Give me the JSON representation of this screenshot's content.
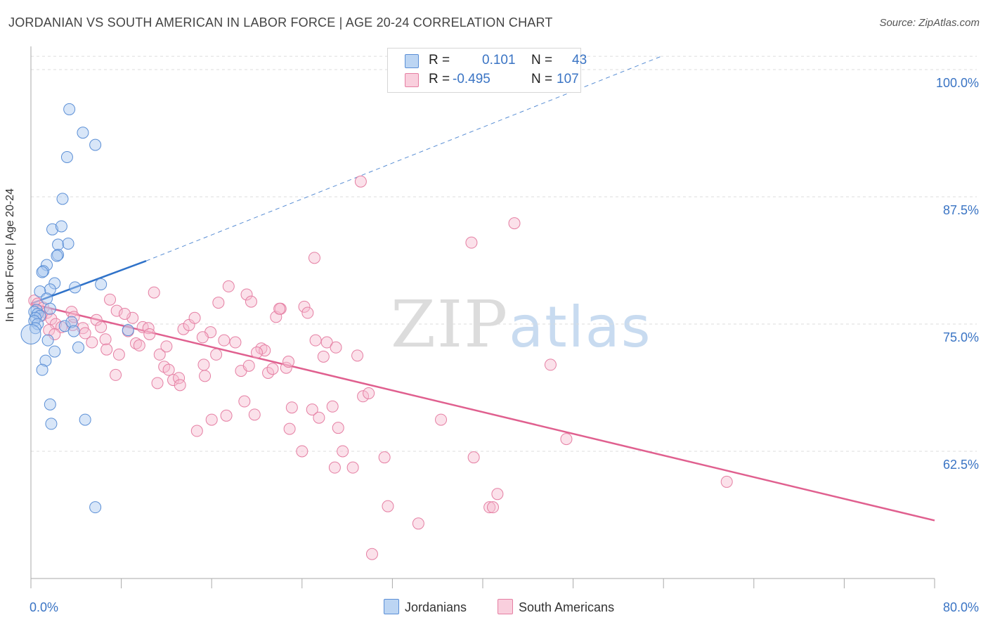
{
  "title": "JORDANIAN VS SOUTH AMERICAN IN LABOR FORCE | AGE 20-24 CORRELATION CHART",
  "source": "Source: ZipAtlas.com",
  "watermark": {
    "zip": "ZIP",
    "atlas": "atlas"
  },
  "legend": {
    "rows": [
      {
        "r_label": "R =",
        "r_value": "0.101",
        "n_label": "N =",
        "n_value": "43"
      },
      {
        "r_label": "R =",
        "r_value": "-0.495",
        "n_label": "N =",
        "n_value": "107"
      }
    ]
  },
  "bottom_legend": {
    "jordanians": "Jordanians",
    "south_americans": "South Americans"
  },
  "colors": {
    "blue_fill": "#a9c8ef",
    "blue_stroke": "#5b8fd6",
    "blue_line": "#2f72c9",
    "pink_fill": "#f6bdd0",
    "pink_stroke": "#e57fa3",
    "pink_line": "#e0608f",
    "tick_text": "#3a74c4",
    "grid": "#dddddd"
  },
  "chart_data": {
    "type": "scatter",
    "title": "JORDANIAN VS SOUTH AMERICAN IN LABOR FORCE | AGE 20-24 CORRELATION CHART",
    "xlabel": "",
    "ylabel": "In Labor Force | Age 20-24",
    "xlim": [
      0,
      80
    ],
    "ylim": [
      50,
      102
    ],
    "x_tick_labels": [
      "0.0%",
      "80.0%"
    ],
    "y_ticks": [
      62.5,
      75.0,
      87.5,
      100.0
    ],
    "y_tick_labels": [
      "62.5%",
      "75.0%",
      "87.5%",
      "100.0%"
    ],
    "series": [
      {
        "name": "Jordanians",
        "r": 0.101,
        "n": 43,
        "trend": {
          "x0": 0,
          "y0": 77.0,
          "x1": 10.2,
          "y1": 81.2,
          "dashed_to_x": 55.8,
          "dashed_to_y": 101.3
        },
        "points": [
          [
            3.4,
            96.1
          ],
          [
            4.6,
            93.8
          ],
          [
            5.7,
            92.6
          ],
          [
            3.2,
            91.4
          ],
          [
            2.8,
            87.3
          ],
          [
            1.9,
            84.3
          ],
          [
            2.7,
            84.6
          ],
          [
            2.4,
            82.8
          ],
          [
            3.3,
            82.9
          ],
          [
            2.4,
            81.8
          ],
          [
            2.3,
            81.7
          ],
          [
            1.4,
            80.8
          ],
          [
            1.1,
            80.2
          ],
          [
            1.0,
            80.1
          ],
          [
            2.1,
            79.0
          ],
          [
            6.2,
            78.9
          ],
          [
            3.9,
            78.6
          ],
          [
            1.7,
            78.4
          ],
          [
            0.8,
            78.2
          ],
          [
            1.4,
            77.5
          ],
          [
            0.5,
            76.4
          ],
          [
            0.3,
            76.2
          ],
          [
            0.6,
            76.0
          ],
          [
            0.8,
            75.8
          ],
          [
            0.4,
            75.6
          ],
          [
            0.3,
            75.3
          ],
          [
            0.6,
            75.0
          ],
          [
            1.7,
            76.5
          ],
          [
            3.0,
            74.8
          ],
          [
            3.6,
            75.2
          ],
          [
            0.4,
            74.6
          ],
          [
            3.8,
            74.3
          ],
          [
            8.6,
            74.4
          ],
          [
            1.5,
            73.4
          ],
          [
            2.1,
            72.3
          ],
          [
            4.2,
            72.7
          ],
          [
            1.3,
            71.4
          ],
          [
            1.0,
            70.5
          ],
          [
            1.7,
            67.1
          ],
          [
            1.8,
            65.2
          ],
          [
            4.8,
            65.6
          ],
          [
            5.7,
            57.0
          ],
          [
            0.0,
            74.0
          ]
        ]
      },
      {
        "name": "South Americans",
        "r": -0.495,
        "n": 107,
        "trend": {
          "x0": 0,
          "y0": 77.0,
          "x1": 80,
          "y1": 55.7
        },
        "points": [
          [
            0.3,
            77.3
          ],
          [
            0.6,
            77.0
          ],
          [
            1.1,
            76.6
          ],
          [
            1.4,
            76.1
          ],
          [
            0.9,
            75.8
          ],
          [
            1.8,
            75.5
          ],
          [
            2.2,
            75.0
          ],
          [
            2.7,
            74.7
          ],
          [
            1.6,
            74.4
          ],
          [
            2.1,
            74.0
          ],
          [
            3.6,
            76.2
          ],
          [
            3.7,
            74.9
          ],
          [
            4.6,
            74.6
          ],
          [
            3.8,
            75.7
          ],
          [
            4.8,
            74.1
          ],
          [
            5.8,
            75.4
          ],
          [
            6.2,
            74.7
          ],
          [
            6.6,
            73.5
          ],
          [
            5.4,
            73.2
          ],
          [
            7.0,
            77.4
          ],
          [
            6.7,
            72.5
          ],
          [
            7.6,
            76.3
          ],
          [
            7.8,
            72.0
          ],
          [
            7.5,
            70.0
          ],
          [
            8.6,
            74.3
          ],
          [
            9.0,
            75.6
          ],
          [
            9.3,
            73.1
          ],
          [
            9.6,
            72.9
          ],
          [
            9.9,
            74.7
          ],
          [
            10.4,
            74.6
          ],
          [
            10.9,
            78.1
          ],
          [
            11.4,
            72.0
          ],
          [
            11.8,
            70.8
          ],
          [
            12.2,
            70.5
          ],
          [
            11.2,
            69.2
          ],
          [
            12.6,
            69.5
          ],
          [
            13.1,
            69.7
          ],
          [
            13.5,
            74.5
          ],
          [
            14.0,
            74.9
          ],
          [
            14.5,
            75.6
          ],
          [
            15.3,
            71.0
          ],
          [
            15.4,
            69.9
          ],
          [
            15.9,
            74.2
          ],
          [
            16.4,
            72.0
          ],
          [
            16.6,
            77.1
          ],
          [
            17.1,
            73.4
          ],
          [
            17.5,
            78.7
          ],
          [
            18.1,
            73.2
          ],
          [
            18.6,
            70.4
          ],
          [
            18.9,
            67.4
          ],
          [
            19.1,
            77.9
          ],
          [
            19.5,
            77.2
          ],
          [
            19.3,
            70.9
          ],
          [
            19.8,
            66.1
          ],
          [
            20.4,
            72.6
          ],
          [
            20.7,
            72.4
          ],
          [
            21.0,
            70.2
          ],
          [
            21.4,
            70.6
          ],
          [
            21.7,
            75.7
          ],
          [
            22.1,
            76.5
          ],
          [
            22.6,
            70.7
          ],
          [
            22.8,
            71.3
          ],
          [
            23.1,
            66.8
          ],
          [
            22.9,
            64.7
          ],
          [
            24.2,
            76.7
          ],
          [
            24.5,
            76.1
          ],
          [
            24.9,
            66.6
          ],
          [
            25.2,
            73.4
          ],
          [
            25.5,
            65.8
          ],
          [
            25.9,
            71.8
          ],
          [
            26.2,
            73.2
          ],
          [
            26.7,
            66.9
          ],
          [
            27.2,
            64.8
          ],
          [
            27.6,
            62.5
          ],
          [
            26.9,
            60.9
          ],
          [
            28.5,
            60.9
          ],
          [
            28.9,
            71.9
          ],
          [
            29.4,
            67.9
          ],
          [
            29.9,
            68.2
          ],
          [
            31.3,
            61.9
          ],
          [
            31.6,
            57.1
          ],
          [
            30.2,
            52.4
          ],
          [
            34.3,
            55.4
          ],
          [
            36.3,
            65.6
          ],
          [
            39.0,
            83.0
          ],
          [
            39.2,
            61.9
          ],
          [
            40.6,
            57.0
          ],
          [
            40.9,
            57.0
          ],
          [
            41.3,
            58.3
          ],
          [
            42.8,
            84.9
          ],
          [
            46.0,
            71.0
          ],
          [
            47.4,
            63.7
          ],
          [
            61.6,
            59.5
          ],
          [
            29.2,
            89.0
          ],
          [
            25.1,
            81.5
          ],
          [
            22.0,
            76.5
          ],
          [
            13.2,
            69.0
          ],
          [
            15.2,
            73.7
          ],
          [
            16.0,
            65.6
          ],
          [
            17.3,
            66.0
          ],
          [
            20.0,
            72.2
          ],
          [
            27.0,
            72.7
          ],
          [
            10.5,
            74.0
          ],
          [
            12.0,
            72.8
          ],
          [
            14.7,
            64.5
          ],
          [
            24.0,
            62.5
          ],
          [
            8.3,
            76.0
          ]
        ]
      }
    ]
  }
}
